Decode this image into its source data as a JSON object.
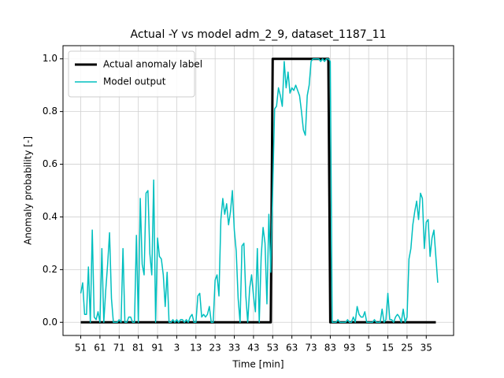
{
  "chart_data": {
    "type": "line",
    "title": "Actual -Y vs model adm_2_9, dataset_1187_11",
    "xlabel": "Time [min]",
    "ylabel": "Anomaly probability [-]",
    "xlim": [
      -9.25,
      194.25
    ],
    "ylim": [
      -0.05,
      1.05
    ],
    "xticks": [
      {
        "value": 0,
        "label": "51"
      },
      {
        "value": 10,
        "label": "61"
      },
      {
        "value": 20,
        "label": "71"
      },
      {
        "value": 30,
        "label": "81"
      },
      {
        "value": 40,
        "label": "91"
      },
      {
        "value": 50,
        "label": "3"
      },
      {
        "value": 60,
        "label": "13"
      },
      {
        "value": 70,
        "label": "23"
      },
      {
        "value": 80,
        "label": "33"
      },
      {
        "value": 90,
        "label": "43"
      },
      {
        "value": 100,
        "label": "53"
      },
      {
        "value": 110,
        "label": "63"
      },
      {
        "value": 120,
        "label": "73"
      },
      {
        "value": 130,
        "label": "83"
      },
      {
        "value": 140,
        "label": "93"
      },
      {
        "value": 150,
        "label": "5"
      },
      {
        "value": 160,
        "label": "15"
      },
      {
        "value": 170,
        "label": "25"
      },
      {
        "value": 180,
        "label": "35"
      }
    ],
    "yticks": [
      {
        "value": 0,
        "label": "0.0"
      },
      {
        "value": 0.2,
        "label": "0.2"
      },
      {
        "value": 0.4,
        "label": "0.4"
      },
      {
        "value": 0.6,
        "label": "0.6"
      },
      {
        "value": 0.8,
        "label": "0.8"
      },
      {
        "value": 1,
        "label": "1.0"
      }
    ],
    "grid": true,
    "legend": "upper left",
    "series": [
      {
        "name": "Actual anomaly label",
        "color": "#000000",
        "width": 3,
        "values": [
          0,
          0,
          0,
          0,
          0,
          0,
          0,
          0,
          0,
          0,
          0,
          0,
          0,
          0,
          0,
          0,
          0,
          0,
          0,
          0,
          0,
          0,
          0,
          0,
          0,
          0,
          0,
          0,
          0,
          0,
          0,
          0,
          0,
          0,
          0,
          0,
          0,
          0,
          0,
          0,
          0,
          0,
          0,
          0,
          0,
          0,
          0,
          0,
          0,
          0,
          0,
          0,
          0,
          0,
          0,
          0,
          0,
          0,
          0,
          0,
          0,
          0,
          0,
          0,
          0,
          0,
          0,
          0,
          0,
          0,
          0,
          0,
          0,
          0,
          0,
          0,
          0,
          0,
          0,
          0,
          0,
          0,
          0,
          0,
          0,
          0,
          0,
          0,
          0,
          0,
          0,
          0,
          0,
          0,
          0,
          0,
          0,
          0,
          0,
          0,
          1,
          1,
          1,
          1,
          1,
          1,
          1,
          1,
          1,
          1,
          1,
          1,
          1,
          1,
          1,
          1,
          1,
          1,
          1,
          1,
          1,
          1,
          1,
          1,
          1,
          1,
          1,
          1,
          1,
          1,
          0,
          0,
          0,
          0,
          0,
          0,
          0,
          0,
          0,
          0,
          0,
          0,
          0,
          0,
          0,
          0,
          0,
          0,
          0,
          0,
          0,
          0,
          0,
          0,
          0,
          0,
          0,
          0,
          0,
          0,
          0,
          0,
          0,
          0,
          0,
          0,
          0,
          0,
          0,
          0,
          0,
          0,
          0,
          0,
          0,
          0,
          0,
          0,
          0,
          0,
          0,
          0,
          0,
          0,
          0,
          0
        ]
      },
      {
        "name": "Model output",
        "color": "#00bfbf",
        "width": 1.5,
        "values": [
          0.11,
          0.15,
          0.03,
          0.03,
          0.21,
          0.0,
          0.35,
          0.02,
          0.01,
          0.04,
          0.0,
          0.28,
          0.0,
          0.12,
          0.22,
          0.34,
          0.09,
          0.0,
          0.0,
          0.0,
          0.01,
          0.0,
          0.28,
          0.0,
          0.0,
          0.02,
          0.02,
          0.0,
          0.0,
          0.33,
          0.0,
          0.47,
          0.22,
          0.18,
          0.49,
          0.5,
          0.26,
          0.18,
          0.54,
          0.0,
          0.32,
          0.25,
          0.24,
          0.18,
          0.06,
          0.19,
          0.0,
          0.0,
          0.01,
          0.0,
          0.01,
          0.0,
          0.01,
          0.01,
          0.0,
          0.01,
          0.0,
          0.02,
          0.03,
          0.0,
          0.0,
          0.1,
          0.11,
          0.02,
          0.03,
          0.02,
          0.03,
          0.06,
          0.0,
          0.0,
          0.16,
          0.18,
          0.1,
          0.39,
          0.47,
          0.41,
          0.45,
          0.37,
          0.42,
          0.5,
          0.35,
          0.27,
          0.09,
          0.0,
          0.29,
          0.3,
          0.1,
          0.0,
          0.13,
          0.18,
          0.1,
          0.04,
          0.28,
          0.0,
          0.25,
          0.36,
          0.3,
          0.07,
          0.41,
          0.19,
          0.5,
          0.81,
          0.82,
          0.89,
          0.86,
          0.82,
          0.99,
          0.89,
          0.95,
          0.87,
          0.89,
          0.88,
          0.9,
          0.88,
          0.86,
          0.8,
          0.73,
          0.71,
          0.86,
          0.9,
          0.99,
          1.0,
          1.0,
          1.0,
          1.0,
          0.99,
          1.0,
          0.99,
          1.0,
          1.0,
          0.99,
          0.0,
          0.0,
          0.0,
          0.01,
          0.0,
          0.0,
          0.0,
          0.0,
          0.01,
          0.0,
          0.0,
          0.02,
          0.0,
          0.06,
          0.03,
          0.02,
          0.02,
          0.04,
          0.0,
          0.0,
          0.0,
          0.0,
          0.01,
          0.0,
          0.0,
          0.0,
          0.05,
          0.0,
          0.01,
          0.11,
          0.01,
          0.01,
          0.0,
          0.02,
          0.03,
          0.02,
          0.0,
          0.05,
          0.0,
          0.02,
          0.24,
          0.28,
          0.37,
          0.42,
          0.46,
          0.39,
          0.49,
          0.47,
          0.28,
          0.38,
          0.39,
          0.25,
          0.32,
          0.35,
          0.25,
          0.15
        ]
      }
    ]
  }
}
